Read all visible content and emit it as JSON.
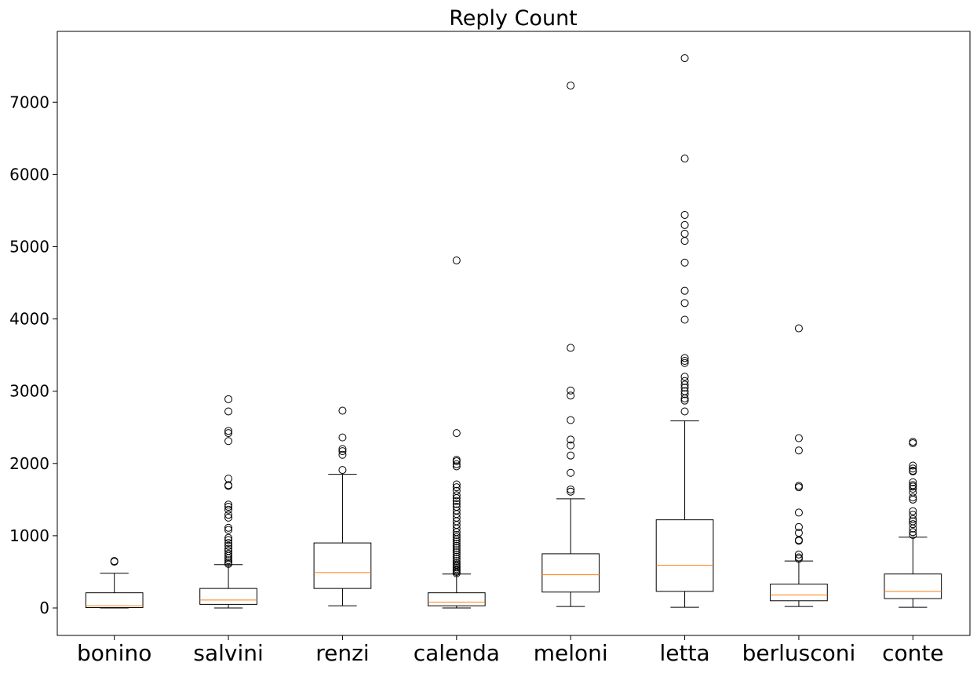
{
  "chart_data": {
    "type": "boxplot",
    "title": "Reply Count",
    "xlabel": "",
    "ylabel": "",
    "ylim": [
      -380,
      7980
    ],
    "yticks": [
      0,
      1000,
      2000,
      3000,
      4000,
      5000,
      6000,
      7000
    ],
    "yticklabels": [
      "0",
      "1000",
      "2000",
      "3000",
      "4000",
      "5000",
      "6000",
      "7000"
    ],
    "grid": false,
    "colors": {
      "box": "#000000",
      "median": "#ff7f0e",
      "flier": "#000000",
      "background": "#ffffff"
    },
    "categories": [
      "bonino",
      "salvini",
      "renzi",
      "calenda",
      "meloni",
      "letta",
      "berlusconi",
      "conte"
    ],
    "boxes": [
      {
        "label": "bonino",
        "whisker_low": 0,
        "q1": 5,
        "median": 30,
        "q3": 210,
        "whisker_high": 480,
        "fliers": [
          640,
          650
        ]
      },
      {
        "label": "salvini",
        "whisker_low": 0,
        "q1": 50,
        "median": 110,
        "q3": 270,
        "whisker_high": 600,
        "fliers": [
          610,
          630,
          660,
          690,
          720,
          750,
          790,
          820,
          860,
          900,
          940,
          970,
          1080,
          1110,
          1250,
          1290,
          1360,
          1400,
          1430,
          1690,
          1700,
          1790,
          2310,
          2420,
          2450,
          2720,
          2890
        ]
      },
      {
        "label": "renzi",
        "whisker_low": 30,
        "q1": 270,
        "median": 490,
        "q3": 900,
        "whisker_high": 1850,
        "fliers": [
          1910,
          2120,
          2170,
          2200,
          2360,
          2730
        ]
      },
      {
        "label": "calenda",
        "whisker_low": 0,
        "q1": 30,
        "median": 80,
        "q3": 210,
        "whisker_high": 470,
        "fliers": [
          480,
          500,
          520,
          540,
          560,
          580,
          600,
          620,
          650,
          680,
          710,
          740,
          770,
          800,
          830,
          860,
          890,
          920,
          950,
          980,
          1010,
          1050,
          1100,
          1150,
          1200,
          1250,
          1300,
          1350,
          1400,
          1440,
          1480,
          1520,
          1560,
          1620,
          1670,
          1710,
          1960,
          1990,
          2030,
          2050,
          2420,
          4810
        ]
      },
      {
        "label": "meloni",
        "whisker_low": 20,
        "q1": 220,
        "median": 460,
        "q3": 750,
        "whisker_high": 1510,
        "fliers": [
          1610,
          1640,
          1870,
          2110,
          2250,
          2330,
          2600,
          2940,
          3010,
          3600,
          7230
        ]
      },
      {
        "label": "letta",
        "whisker_low": 10,
        "q1": 230,
        "median": 590,
        "q3": 1220,
        "whisker_high": 2590,
        "fliers": [
          2720,
          2870,
          2900,
          2960,
          3000,
          3050,
          3090,
          3140,
          3200,
          3390,
          3420,
          3460,
          3990,
          4220,
          4390,
          4780,
          5080,
          5180,
          5300,
          5440,
          6220,
          7610
        ]
      },
      {
        "label": "berlusconi",
        "whisker_low": 20,
        "q1": 100,
        "median": 180,
        "q3": 330,
        "whisker_high": 650,
        "fliers": [
          680,
          700,
          740,
          930,
          940,
          1040,
          1120,
          1320,
          1670,
          1690,
          2180,
          2350,
          3870
        ]
      },
      {
        "label": "conte",
        "whisker_low": 10,
        "q1": 130,
        "median": 230,
        "q3": 470,
        "whisker_high": 980,
        "fliers": [
          1010,
          1050,
          1100,
          1160,
          1200,
          1230,
          1290,
          1340,
          1500,
          1530,
          1600,
          1650,
          1680,
          1700,
          1740,
          1890,
          1900,
          1930,
          1970,
          2280,
          2300
        ]
      }
    ]
  }
}
